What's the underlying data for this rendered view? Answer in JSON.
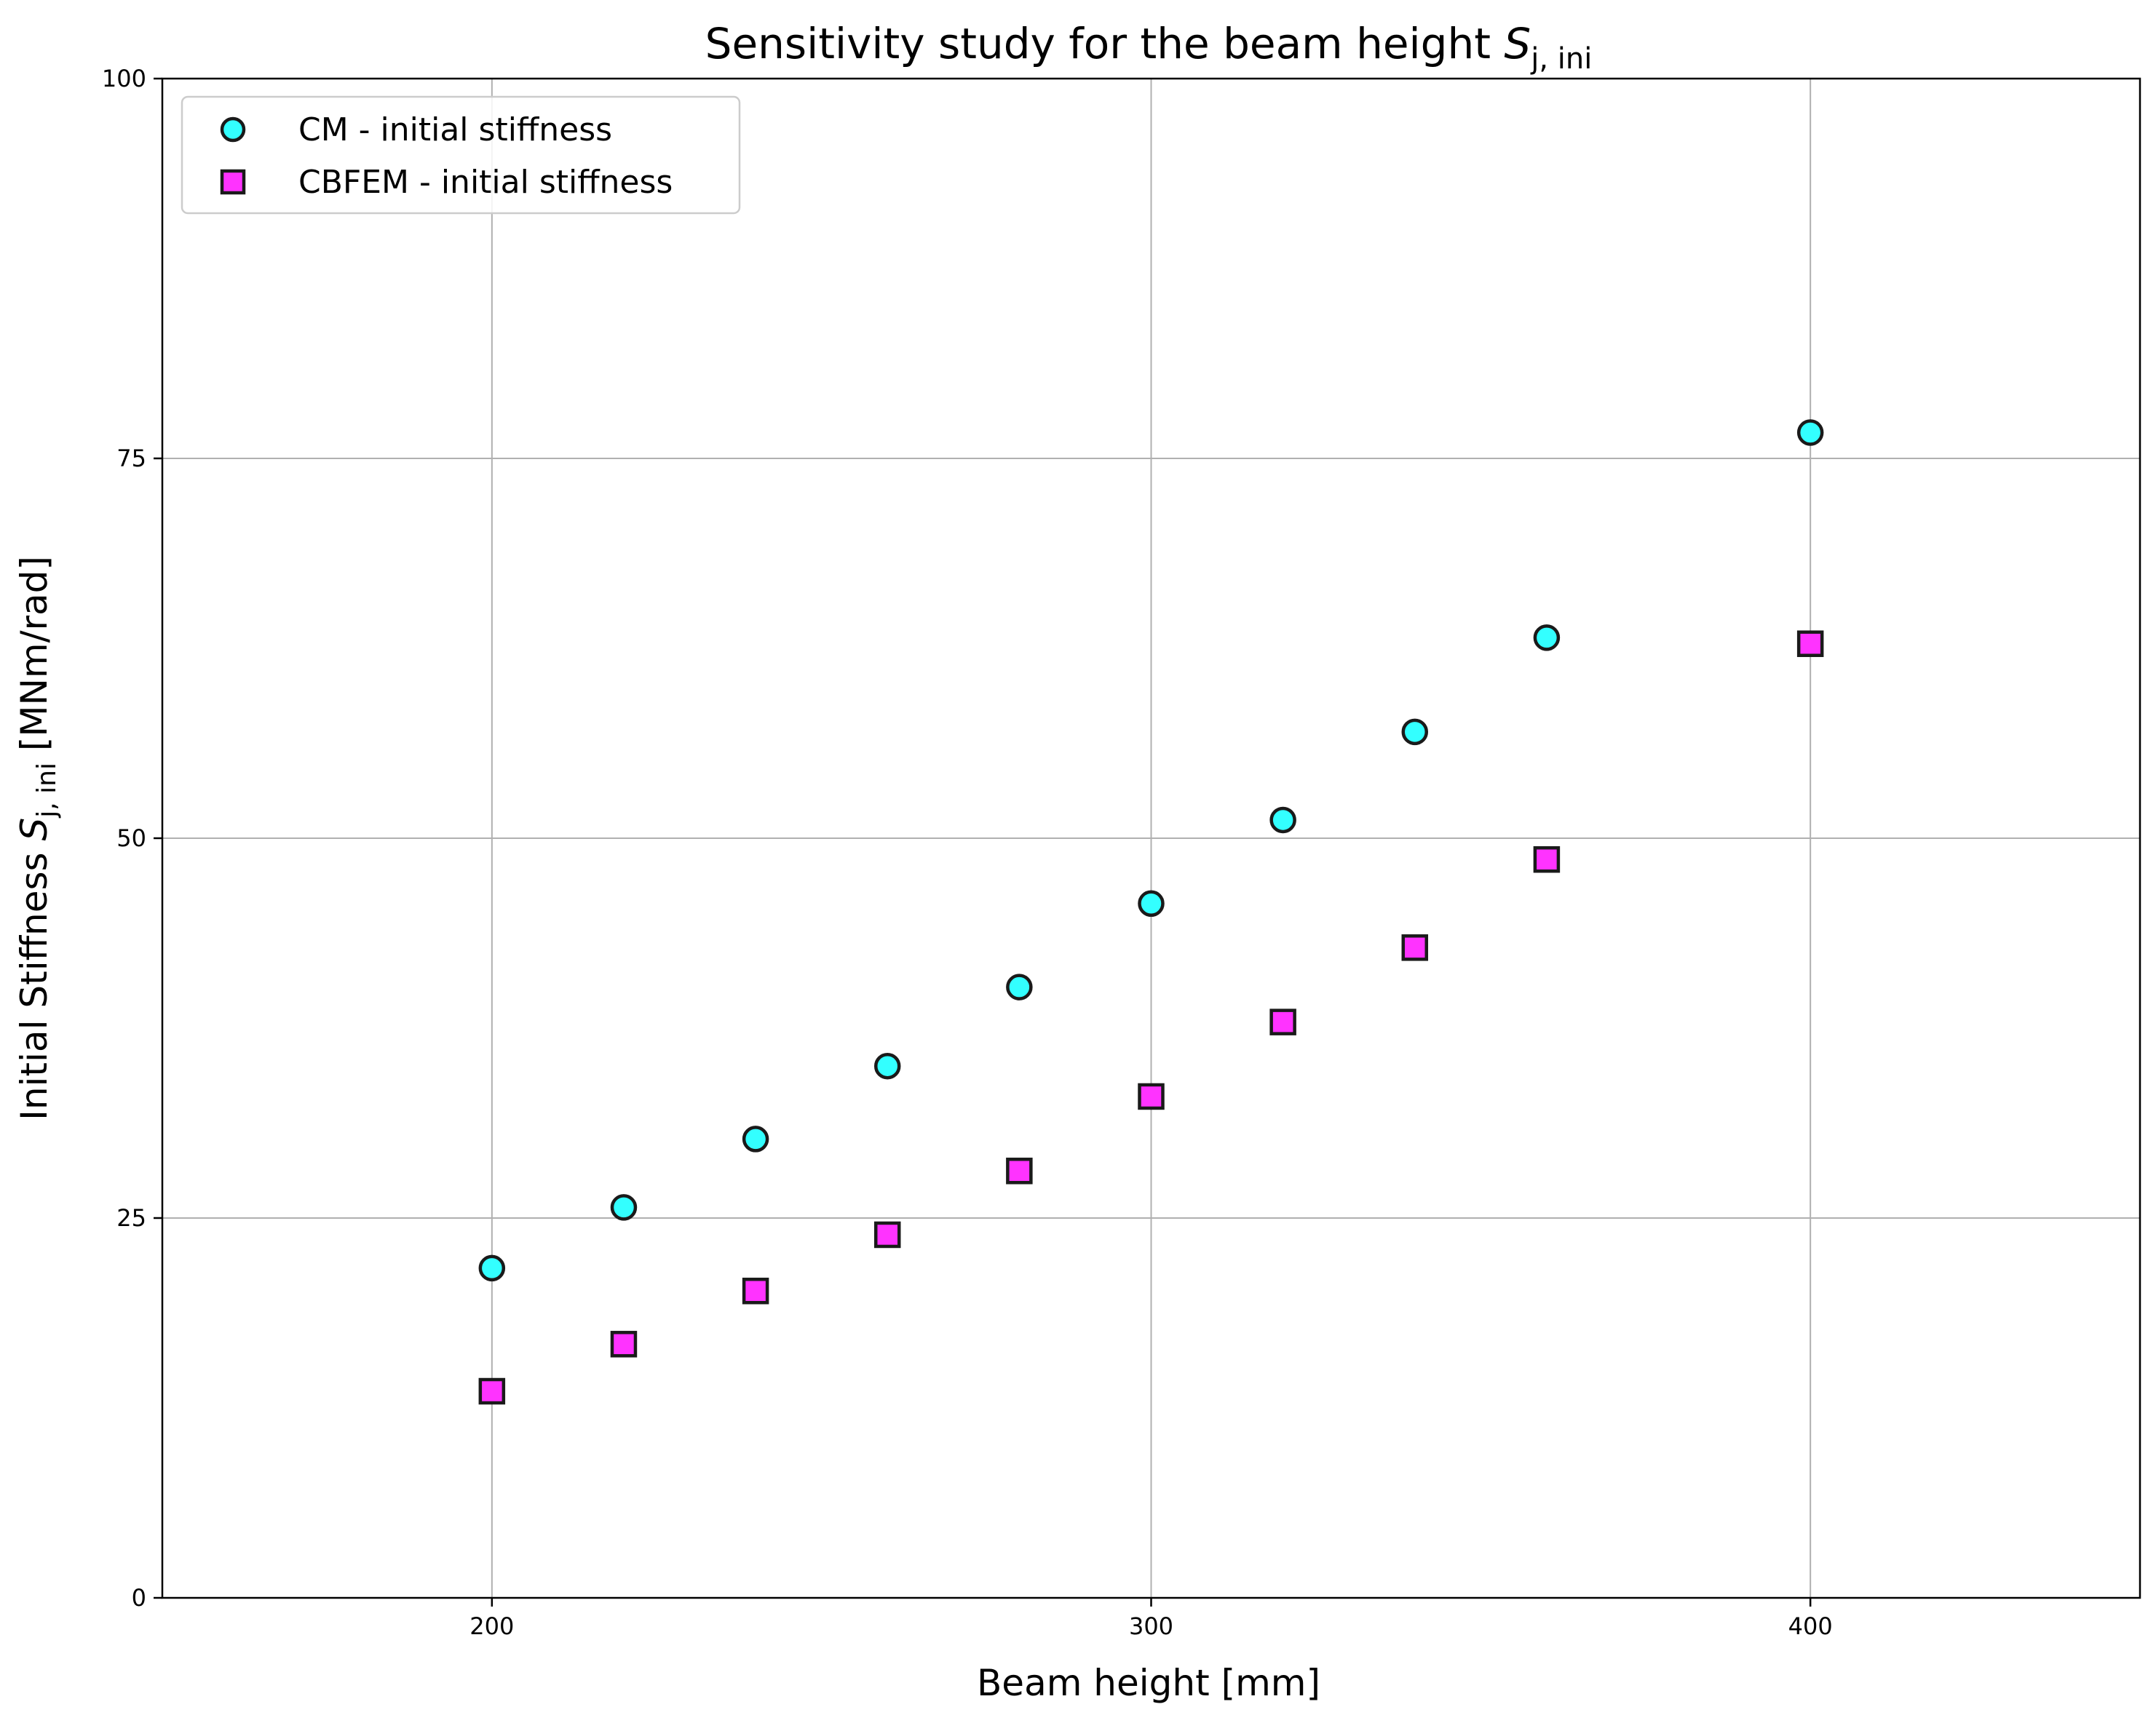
{
  "chart_data": {
    "type": "scatter",
    "title": "Sensitivity study for the beam height ",
    "title_symbol": "S",
    "title_subscript": "j, ini",
    "xlabel": "Beam height [mm]",
    "ylabel": "Initial Stiffness ",
    "ylabel_symbol": "S",
    "ylabel_subscript": "j, ini",
    "ylabel_suffix": " [MNm/rad]",
    "xlim": [
      150,
      450
    ],
    "ylim": [
      0,
      100
    ],
    "xticks": [
      200,
      300,
      400
    ],
    "yticks": [
      0,
      25,
      50,
      75,
      100
    ],
    "grid": true,
    "legend_position": "top-left",
    "series": [
      {
        "name": "CM - initial stiffness",
        "marker": "circle",
        "color": "#33ffff",
        "x": [
          200,
          220,
          240,
          260,
          280,
          300,
          320,
          340,
          360,
          400
        ],
        "y": [
          21.7,
          25.7,
          30.2,
          35.0,
          40.2,
          45.7,
          51.2,
          57.0,
          63.2,
          76.7
        ]
      },
      {
        "name": "CBFEM - initial stiffness",
        "marker": "square",
        "color": "#ff33ff",
        "x": [
          200,
          220,
          240,
          260,
          280,
          300,
          320,
          340,
          360,
          400
        ],
        "y": [
          13.6,
          16.7,
          20.2,
          23.9,
          28.1,
          33.0,
          37.9,
          42.8,
          48.6,
          62.8
        ]
      }
    ]
  }
}
